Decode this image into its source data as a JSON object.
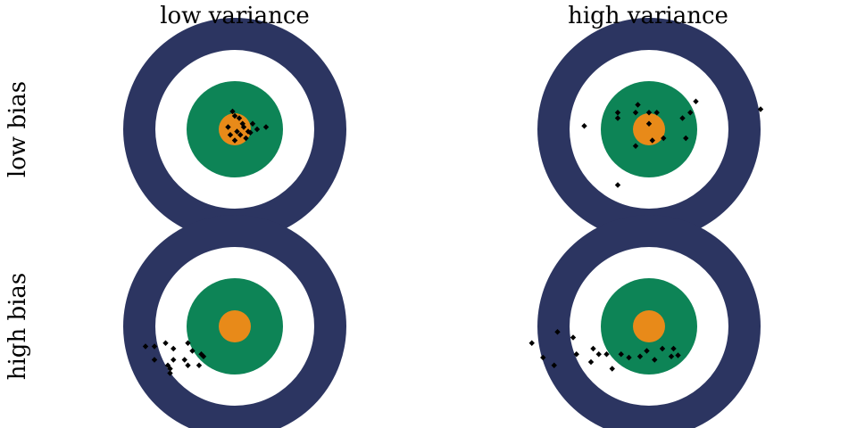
{
  "columns": [
    {
      "title": "low variance"
    },
    {
      "title": "high variance"
    }
  ],
  "rows": [
    {
      "label": "low bias"
    },
    {
      "label": "high bias"
    }
  ],
  "colors": {
    "outer_ring": "#2c3561",
    "white_ring": "#ffffff",
    "green_ring": "#0d8456",
    "bullseye": "#e88a19",
    "shot": "#000000"
  },
  "panels": [
    {
      "row": "low bias",
      "column": "low variance",
      "shots": [
        [
          0.0,
          0.12
        ],
        [
          -0.02,
          0.16
        ],
        [
          0.04,
          0.1
        ],
        [
          0.07,
          0.05
        ],
        [
          0.12,
          -0.02
        ],
        [
          0.16,
          0.05
        ],
        [
          0.2,
          0.0
        ],
        [
          0.28,
          0.02
        ],
        [
          0.05,
          -0.05
        ],
        [
          -0.06,
          0.02
        ],
        [
          0.0,
          -0.1
        ],
        [
          0.1,
          -0.08
        ],
        [
          0.14,
          -0.03
        ],
        [
          -0.04,
          -0.05
        ],
        [
          0.08,
          0.02
        ],
        [
          0.02,
          -0.02
        ]
      ]
    },
    {
      "row": "low bias",
      "column": "high variance",
      "shots": [
        [
          -0.58,
          0.03
        ],
        [
          -0.28,
          0.1
        ],
        [
          -0.28,
          0.15
        ],
        [
          -0.12,
          0.15
        ],
        [
          -0.1,
          0.22
        ],
        [
          0.0,
          0.15
        ],
        [
          0.07,
          0.15
        ],
        [
          0.3,
          0.1
        ],
        [
          0.37,
          0.15
        ],
        [
          0.42,
          0.25
        ],
        [
          0.33,
          -0.08
        ],
        [
          0.13,
          -0.08
        ],
        [
          0.03,
          -0.1
        ],
        [
          -0.12,
          -0.15
        ],
        [
          -0.28,
          -0.5
        ],
        [
          0.0,
          0.05
        ],
        [
          1.0,
          0.18
        ]
      ]
    },
    {
      "row": "high bias",
      "column": "low variance",
      "shots": [
        [
          -0.8,
          -0.18
        ],
        [
          -0.72,
          -0.18
        ],
        [
          -0.62,
          -0.15
        ],
        [
          -0.55,
          -0.2
        ],
        [
          -0.42,
          -0.15
        ],
        [
          -0.38,
          -0.22
        ],
        [
          -0.3,
          -0.25
        ],
        [
          -0.45,
          -0.3
        ],
        [
          -0.55,
          -0.3
        ],
        [
          -0.72,
          -0.3
        ],
        [
          -0.58,
          -0.38
        ],
        [
          -0.58,
          -0.42
        ],
        [
          -0.42,
          -0.35
        ],
        [
          -0.32,
          -0.35
        ],
        [
          -0.28,
          -0.27
        ],
        [
          -0.6,
          -0.35
        ]
      ]
    },
    {
      "row": "high bias",
      "column": "high variance",
      "shots": [
        [
          -1.05,
          -0.15
        ],
        [
          -0.82,
          -0.05
        ],
        [
          -0.68,
          -0.1
        ],
        [
          -0.65,
          -0.25
        ],
        [
          -0.5,
          -0.2
        ],
        [
          -0.45,
          -0.25
        ],
        [
          -0.38,
          -0.25
        ],
        [
          -0.25,
          -0.25
        ],
        [
          -0.18,
          -0.28
        ],
        [
          -0.33,
          -0.38
        ],
        [
          -0.52,
          -0.32
        ],
        [
          -0.95,
          -0.28
        ],
        [
          -0.85,
          -0.35
        ],
        [
          0.12,
          -0.2
        ],
        [
          0.22,
          -0.2
        ],
        [
          0.26,
          -0.26
        ],
        [
          0.2,
          -0.27
        ],
        [
          -0.08,
          -0.27
        ],
        [
          -0.02,
          -0.22
        ],
        [
          0.05,
          -0.3
        ]
      ]
    }
  ]
}
